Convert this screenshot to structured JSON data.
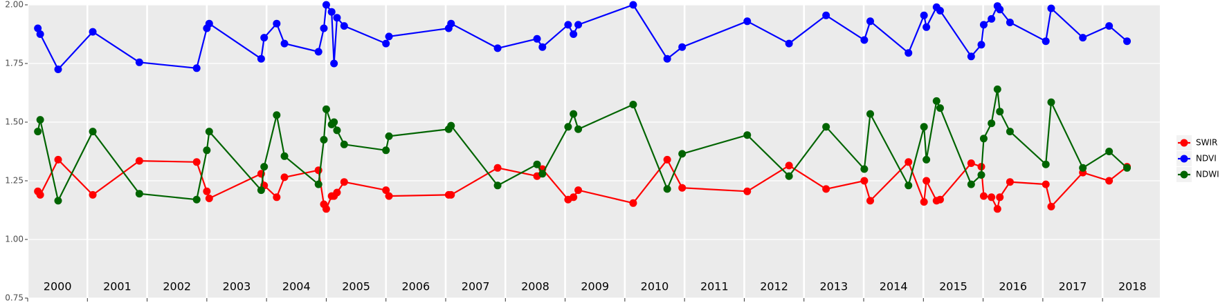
{
  "chart_data": {
    "type": "line",
    "x": [
      2000.17,
      2000.21,
      2000.51,
      2001.09,
      2001.87,
      2002.83,
      2003.0,
      2003.04,
      2003.91,
      2003.96,
      2004.17,
      2004.3,
      2004.87,
      2004.96,
      2005.0,
      2005.09,
      2005.13,
      2005.18,
      2005.3,
      2006.0,
      2006.05,
      2007.05,
      2007.09,
      2007.87,
      2008.53,
      2008.62,
      2009.05,
      2009.14,
      2009.22,
      2010.14,
      2010.71,
      2010.96,
      2012.05,
      2012.75,
      2013.37,
      2014.01,
      2014.11,
      2014.75,
      2015.01,
      2015.05,
      2015.22,
      2015.28,
      2015.8,
      2015.97,
      2016.01,
      2016.14,
      2016.24,
      2016.28,
      2016.45,
      2017.05,
      2017.14,
      2017.67,
      2018.11,
      2018.41
    ],
    "series": [
      {
        "name": "SWIR",
        "color": "#ff0000",
        "values": [
          1.205,
          1.19,
          1.34,
          1.19,
          1.335,
          1.33,
          1.205,
          1.175,
          1.28,
          1.23,
          1.18,
          1.265,
          1.295,
          1.15,
          1.13,
          1.185,
          1.185,
          1.2,
          1.245,
          1.21,
          1.185,
          1.19,
          1.19,
          1.305,
          1.27,
          1.3,
          1.17,
          1.18,
          1.21,
          1.155,
          1.34,
          1.22,
          1.205,
          1.315,
          1.215,
          1.25,
          1.165,
          1.33,
          1.16,
          1.25,
          1.165,
          1.17,
          1.325,
          1.31,
          1.185,
          1.18,
          1.13,
          1.18,
          1.245,
          1.235,
          1.14,
          1.285,
          1.25,
          1.31
        ]
      },
      {
        "name": "NDVI",
        "color": "#0000ff",
        "values": [
          1.9,
          1.875,
          1.725,
          1.885,
          1.755,
          1.73,
          1.9,
          1.92,
          1.77,
          1.86,
          1.92,
          1.835,
          1.8,
          1.9,
          2.0,
          1.97,
          1.75,
          1.945,
          1.91,
          1.835,
          1.865,
          1.9,
          1.92,
          1.815,
          1.855,
          1.82,
          1.915,
          1.875,
          1.915,
          2.0,
          1.77,
          1.82,
          1.93,
          1.835,
          1.955,
          1.85,
          1.93,
          1.795,
          1.955,
          1.905,
          1.99,
          1.975,
          1.78,
          1.83,
          1.915,
          1.94,
          1.995,
          1.98,
          1.925,
          1.845,
          1.985,
          1.86,
          1.91,
          1.845
        ]
      },
      {
        "name": "NDWI",
        "color": "#006400",
        "values": [
          1.46,
          1.51,
          1.165,
          1.46,
          1.195,
          1.17,
          1.38,
          1.46,
          1.21,
          1.31,
          1.53,
          1.355,
          1.235,
          1.425,
          1.555,
          1.49,
          1.5,
          1.465,
          1.405,
          1.38,
          1.44,
          1.47,
          1.485,
          1.23,
          1.32,
          1.28,
          1.48,
          1.535,
          1.47,
          1.575,
          1.215,
          1.365,
          1.445,
          1.27,
          1.48,
          1.3,
          1.535,
          1.23,
          1.48,
          1.34,
          1.59,
          1.56,
          1.235,
          1.275,
          1.43,
          1.495,
          1.64,
          1.545,
          1.46,
          1.32,
          1.585,
          1.305,
          1.375,
          1.305
        ]
      }
    ],
    "xlim": [
      2000,
      2018.96
    ],
    "xticks": [
      2000,
      2001,
      2002,
      2003,
      2004,
      2005,
      2006,
      2007,
      2008,
      2009,
      2010,
      2011,
      2012,
      2013,
      2014,
      2015,
      2016,
      2017,
      2018
    ],
    "year_labels": [
      {
        "x": 2000.5,
        "label": "2000"
      },
      {
        "x": 2001.5,
        "label": "2001"
      },
      {
        "x": 2002.5,
        "label": "2002"
      },
      {
        "x": 2003.5,
        "label": "2003"
      },
      {
        "x": 2004.5,
        "label": "2004"
      },
      {
        "x": 2005.5,
        "label": "2005"
      },
      {
        "x": 2006.5,
        "label": "2006"
      },
      {
        "x": 2007.5,
        "label": "2007"
      },
      {
        "x": 2008.5,
        "label": "2008"
      },
      {
        "x": 2009.5,
        "label": "2009"
      },
      {
        "x": 2010.5,
        "label": "2010"
      },
      {
        "x": 2011.5,
        "label": "2011"
      },
      {
        "x": 2012.5,
        "label": "2012"
      },
      {
        "x": 2013.5,
        "label": "2013"
      },
      {
        "x": 2014.5,
        "label": "2014"
      },
      {
        "x": 2015.5,
        "label": "2015"
      },
      {
        "x": 2016.5,
        "label": "2016"
      },
      {
        "x": 2017.5,
        "label": "2017"
      },
      {
        "x": 2018.5,
        "label": "2018"
      }
    ],
    "ylim": [
      0.75,
      2.0
    ],
    "yticks": [
      {
        "value": 0.75,
        "label": "0.75"
      },
      {
        "value": 1.0,
        "label": "1.00"
      },
      {
        "value": 1.25,
        "label": "1.25"
      },
      {
        "value": 1.5,
        "label": "1.50"
      },
      {
        "value": 1.75,
        "label": "1.75"
      },
      {
        "value": 2.0,
        "label": "2.00"
      }
    ],
    "grid": true,
    "legend": "right"
  }
}
